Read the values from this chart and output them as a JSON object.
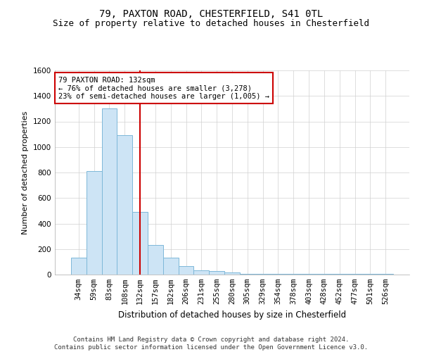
{
  "title1": "79, PAXTON ROAD, CHESTERFIELD, S41 0TL",
  "title2": "Size of property relative to detached houses in Chesterfield",
  "xlabel": "Distribution of detached houses by size in Chesterfield",
  "ylabel": "Number of detached properties",
  "categories": [
    "34sqm",
    "59sqm",
    "83sqm",
    "108sqm",
    "132sqm",
    "157sqm",
    "182sqm",
    "206sqm",
    "231sqm",
    "255sqm",
    "280sqm",
    "305sqm",
    "329sqm",
    "354sqm",
    "378sqm",
    "403sqm",
    "428sqm",
    "452sqm",
    "477sqm",
    "501sqm",
    "526sqm"
  ],
  "values": [
    130,
    810,
    1300,
    1090,
    490,
    230,
    130,
    65,
    35,
    25,
    15,
    8,
    5,
    5,
    5,
    5,
    5,
    5,
    5,
    5,
    5
  ],
  "highlight_index": 4,
  "bar_color": "#cde4f5",
  "bar_edge_color": "#7db8d8",
  "highlight_line_color": "#cc0000",
  "ylim": [
    0,
    1600
  ],
  "yticks": [
    0,
    200,
    400,
    600,
    800,
    1000,
    1200,
    1400,
    1600
  ],
  "annotation_line1": "79 PAXTON ROAD: 132sqm",
  "annotation_line2": "← 76% of detached houses are smaller (3,278)",
  "annotation_line3": "23% of semi-detached houses are larger (1,005) →",
  "annotation_box_color": "#ffffff",
  "annotation_box_edgecolor": "#cc0000",
  "footer_text": "Contains HM Land Registry data © Crown copyright and database right 2024.\nContains public sector information licensed under the Open Government Licence v3.0.",
  "grid_color": "#d0d0d0",
  "background_color": "#ffffff",
  "title1_fontsize": 10,
  "title2_fontsize": 9,
  "xlabel_fontsize": 8.5,
  "ylabel_fontsize": 8,
  "tick_fontsize": 7.5,
  "annotation_fontsize": 7.5,
  "footer_fontsize": 6.5
}
